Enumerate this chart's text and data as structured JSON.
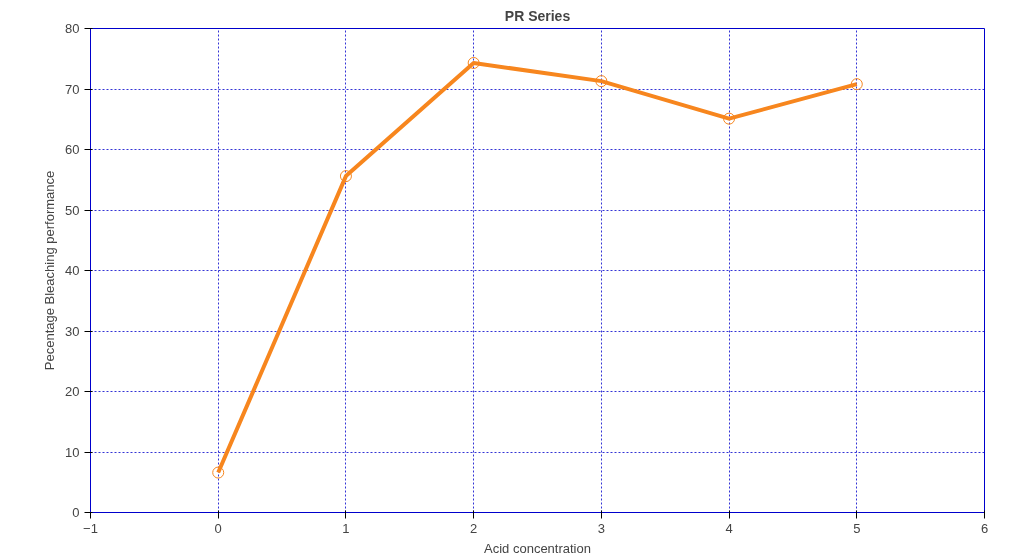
{
  "chart_data": {
    "type": "line",
    "title": "PR Series",
    "xlabel": "Acid concentration",
    "ylabel": "Pecentage Bleaching performance",
    "x": [
      0,
      1,
      2,
      3,
      4,
      5
    ],
    "series": [
      {
        "color": "#f7861e",
        "values": [
          6.6,
          55.6,
          74.3,
          71.3,
          65.1,
          70.8
        ]
      }
    ],
    "xlim": [
      -1,
      6
    ],
    "xticks": [
      -1,
      0,
      1,
      2,
      3,
      4,
      5,
      6
    ],
    "ylim": [
      0,
      80
    ],
    "yticks": [
      0,
      10,
      20,
      30,
      40,
      50,
      60,
      70,
      80
    ],
    "grid": true,
    "marker": "circle",
    "line_style": "solid"
  }
}
